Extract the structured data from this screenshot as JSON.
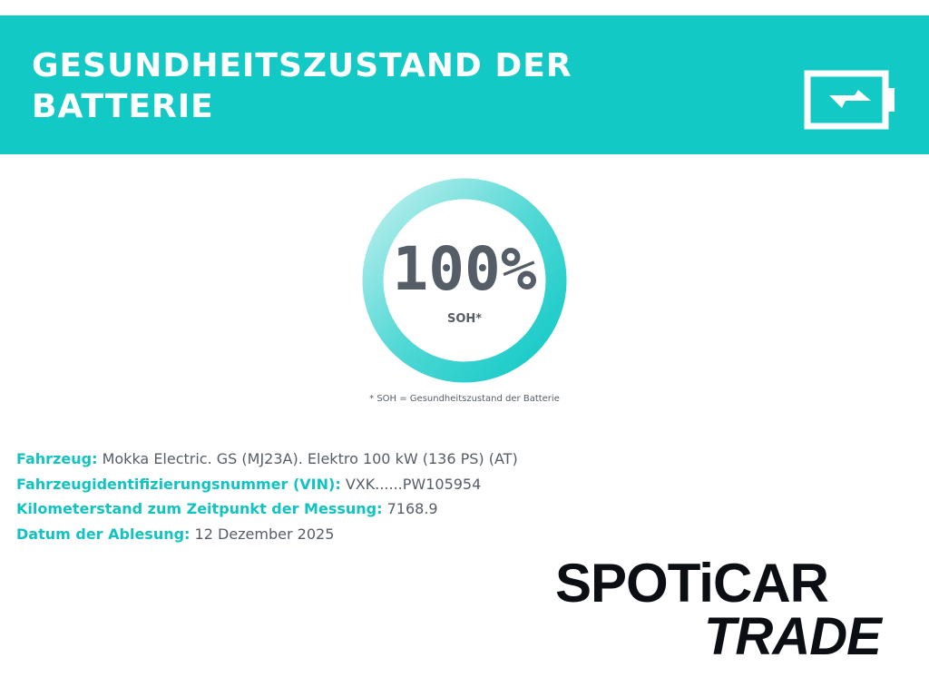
{
  "header": {
    "title": "GESUNDHEITSZUSTAND DER BATTERIE"
  },
  "gauge": {
    "value": "100%",
    "metric": "SOH*",
    "footnote": "* SOH = Gesundheitszustand der Batterie"
  },
  "details": [
    {
      "label": "Fahrzeug:",
      "value": "Mokka Electric. GS (MJ23A). Elektro 100 kW (136 PS) (AT)"
    },
    {
      "label": "Fahrzeugidentifizierungsnummer (VIN):",
      "value": "VXK......PW105954"
    },
    {
      "label": "Kilometerstand zum Zeitpunkt der Messung:",
      "value": "7168.9"
    },
    {
      "label": "Datum der Ablesung:",
      "value": "12 Dezember 2025"
    }
  ],
  "logo": {
    "brand": "SPOTiCAR",
    "sub": "TRADE"
  }
}
